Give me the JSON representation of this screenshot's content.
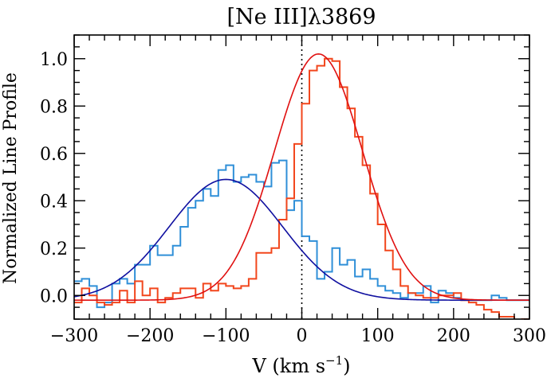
{
  "chart_data": {
    "type": "line",
    "title": "[Ne III]λ3869",
    "xlabel": "V (km s",
    "xlabel_sup": "−1",
    "xlabel_end": ")",
    "ylabel": "Normalized Line Profile",
    "xlim": [
      -300,
      300
    ],
    "ylim": [
      -0.1,
      1.1
    ],
    "xticks": [
      -300,
      -200,
      -100,
      0,
      100,
      200,
      300
    ],
    "xtick_labels": [
      "−300",
      "−200",
      "−100",
      "0",
      "100",
      "200",
      "300"
    ],
    "yticks": [
      0.0,
      0.2,
      0.4,
      0.6,
      0.8,
      1.0
    ],
    "ytick_labels": [
      "0.0",
      "0.2",
      "0.4",
      "0.6",
      "0.8",
      "1.0"
    ],
    "grid": false,
    "reference_line": {
      "x": 0,
      "style": "dotted"
    },
    "bin_width": 10,
    "series": [
      {
        "kind": "histogram",
        "color": "#2f8fd8",
        "x": [
          -300,
          -290,
          -280,
          -270,
          -260,
          -250,
          -240,
          -230,
          -220,
          -210,
          -200,
          -190,
          -180,
          -170,
          -160,
          -150,
          -140,
          -130,
          -120,
          -110,
          -100,
          -90,
          -80,
          -70,
          -60,
          -50,
          -40,
          -30,
          -20,
          -10,
          0,
          10,
          20,
          30,
          40,
          50,
          60,
          70,
          80,
          90,
          100,
          110,
          120,
          130,
          140,
          150,
          160,
          170,
          180,
          190,
          200,
          210,
          220,
          230,
          240,
          250,
          260,
          270,
          280,
          290
        ],
        "values": [
          0.06,
          0.07,
          0.04,
          -0.05,
          -0.03,
          0.05,
          0.07,
          0.05,
          0.13,
          0.13,
          0.21,
          0.17,
          0.17,
          0.21,
          0.29,
          0.37,
          0.4,
          0.45,
          0.42,
          0.53,
          0.55,
          0.48,
          0.5,
          0.51,
          0.48,
          0.46,
          0.56,
          0.57,
          0.36,
          0.4,
          0.25,
          0.23,
          0.07,
          0.1,
          0.2,
          0.13,
          0.15,
          0.08,
          0.11,
          0.07,
          0.04,
          0.02,
          0.01,
          -0.01,
          0.01,
          0.01,
          0.04,
          -0.03,
          0.02,
          0.01,
          -0.01,
          -0.02,
          -0.02,
          -0.02,
          -0.02,
          0.0,
          -0.01,
          -0.02,
          -0.02,
          -0.02
        ]
      },
      {
        "kind": "histogram",
        "color": "#f2461c",
        "x": [
          -300,
          -290,
          -280,
          -270,
          -260,
          -250,
          -240,
          -230,
          -220,
          -210,
          -200,
          -190,
          -180,
          -170,
          -160,
          -150,
          -140,
          -130,
          -120,
          -110,
          -100,
          -90,
          -80,
          -70,
          -60,
          -50,
          -40,
          -30,
          -20,
          -10,
          0,
          10,
          20,
          30,
          40,
          50,
          60,
          70,
          80,
          90,
          100,
          110,
          120,
          130,
          140,
          150,
          160,
          170,
          180,
          190,
          200,
          210,
          220,
          230,
          240,
          250,
          260,
          270,
          280,
          290
        ],
        "values": [
          -0.03,
          0.03,
          0.0,
          -0.03,
          -0.04,
          -0.03,
          0.02,
          -0.03,
          0.06,
          0.0,
          0.03,
          -0.03,
          -0.01,
          0.01,
          0.03,
          0.03,
          -0.01,
          0.05,
          0.02,
          0.05,
          0.04,
          0.03,
          0.04,
          0.07,
          0.18,
          0.18,
          0.2,
          0.32,
          0.41,
          0.64,
          0.81,
          0.95,
          0.97,
          1.0,
          0.99,
          0.88,
          0.79,
          0.67,
          0.55,
          0.43,
          0.3,
          0.19,
          0.11,
          0.04,
          0.01,
          0.0,
          -0.01,
          -0.01,
          0.0,
          0.0,
          0.01,
          -0.02,
          -0.03,
          -0.04,
          -0.06,
          -0.07,
          -0.09,
          -0.09,
          -0.11,
          -0.1
        ]
      },
      {
        "kind": "gaussian_fit",
        "color": "#1010a0",
        "center": -100,
        "sigma": 75,
        "amplitude": 0.51,
        "baseline": -0.02
      },
      {
        "kind": "gaussian_fit",
        "color": "#e01010",
        "center": 22,
        "sigma": 58,
        "amplitude": 1.04,
        "baseline": -0.02
      }
    ]
  }
}
